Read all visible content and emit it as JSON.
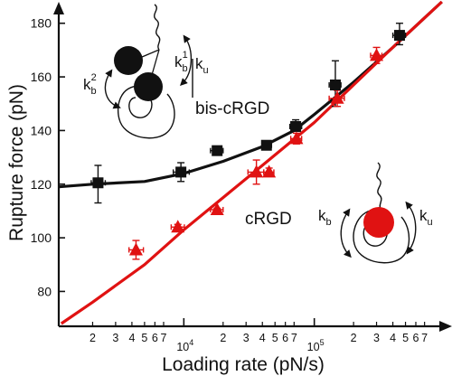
{
  "chart_data": {
    "type": "scatter",
    "xlabel": "Loading rate (pN/s)",
    "ylabel": "Rupture force (pN)",
    "x_scale": "log",
    "xlim": [
      1100,
      1000000
    ],
    "ylim": [
      67,
      188
    ],
    "y_ticks": [
      80,
      100,
      120,
      140,
      160,
      180
    ],
    "x_decade_labels": [
      {
        "value": 10000,
        "base": "10",
        "exp": "4"
      },
      {
        "value": 100000,
        "base": "10",
        "exp": "5"
      }
    ],
    "x_minor_ticks": [
      {
        "value": 2000,
        "label": "2"
      },
      {
        "value": 3000,
        "label": "3"
      },
      {
        "value": 4000,
        "label": "4"
      },
      {
        "value": 5000,
        "label": "5"
      },
      {
        "value": 6000,
        "label": "6"
      },
      {
        "value": 7000,
        "label": "7"
      },
      {
        "value": 20000,
        "label": "2"
      },
      {
        "value": 30000,
        "label": "3"
      },
      {
        "value": 40000,
        "label": "4"
      },
      {
        "value": 50000,
        "label": "5"
      },
      {
        "value": 60000,
        "label": "6"
      },
      {
        "value": 70000,
        "label": "7"
      },
      {
        "value": 200000,
        "label": "2"
      },
      {
        "value": 300000,
        "label": "3"
      },
      {
        "value": 400000,
        "label": "4"
      },
      {
        "value": 500000,
        "label": "5"
      },
      {
        "value": 600000,
        "label": "6"
      },
      {
        "value": 700000,
        "label": "7"
      }
    ],
    "series": [
      {
        "name": "bis-cRGD",
        "color": "#111111",
        "marker": "square",
        "points": [
          {
            "x": 2200,
            "y": 120.5,
            "xerr": [
              1950,
              2500
            ],
            "yerr": [
              113,
              127
            ]
          },
          {
            "x": 9500,
            "y": 124.5,
            "xerr": [
              8300,
              11000
            ],
            "yerr": [
              121,
              128
            ]
          },
          {
            "x": 18000,
            "y": 132.5,
            "xerr": [
              16000,
              20000
            ],
            "yerr": [
              131,
              134
            ]
          },
          {
            "x": 43000,
            "y": 134.5,
            "xerr": [
              40000,
              47000
            ],
            "yerr": [
              133,
              136
            ]
          },
          {
            "x": 72000,
            "y": 141.5,
            "xerr": [
              65000,
              80000
            ],
            "yerr": [
              140,
              144
            ]
          },
          {
            "x": 145000,
            "y": 157,
            "xerr": [
              130000,
              160000
            ],
            "yerr": [
              149,
              166
            ]
          },
          {
            "x": 450000,
            "y": 175.5,
            "xerr": [
              400000,
              500000
            ],
            "yerr": [
              172,
              180
            ]
          }
        ],
        "fit": [
          [
            1100,
            119
          ],
          [
            2000,
            120
          ],
          [
            5000,
            121
          ],
          [
            10000,
            124
          ],
          [
            20000,
            128.5
          ],
          [
            40000,
            134
          ],
          [
            70000,
            140
          ],
          [
            100000,
            146
          ],
          [
            200000,
            158
          ],
          [
            400000,
            171
          ],
          [
            700000,
            182
          ],
          [
            950000,
            188
          ]
        ]
      },
      {
        "name": "cRGD",
        "color": "#e01212",
        "marker": "triangle",
        "points": [
          {
            "x": 4300,
            "y": 95.5,
            "xerr": [
              3800,
              4900
            ],
            "yerr": [
              92,
              99
            ]
          },
          {
            "x": 9000,
            "y": 104,
            "xerr": [
              8000,
              10100
            ],
            "yerr": [
              103,
              105
            ]
          },
          {
            "x": 18000,
            "y": 110.5,
            "xerr": [
              16000,
              20000
            ],
            "yerr": [
              110,
              111
            ]
          },
          {
            "x": 36000,
            "y": 124.5,
            "xerr": [
              31000,
              41000
            ],
            "yerr": [
              120,
              129
            ]
          },
          {
            "x": 45000,
            "y": 124.5,
            "xerr": [
              41000,
              49000
            ],
            "yerr": [
              123,
              126
            ]
          },
          {
            "x": 73000,
            "y": 137,
            "xerr": [
              66000,
              80000
            ],
            "yerr": [
              135,
              139
            ]
          },
          {
            "x": 150000,
            "y": 152,
            "xerr": [
              130000,
              170000
            ],
            "yerr": [
              149,
              155
            ]
          },
          {
            "x": 300000,
            "y": 168,
            "xerr": [
              270000,
              330000
            ],
            "yerr": [
              165,
              171
            ]
          }
        ],
        "fit": [
          [
            1150,
            68
          ],
          [
            2000,
            76
          ],
          [
            5000,
            90
          ],
          [
            10000,
            103
          ],
          [
            20000,
            115
          ],
          [
            40000,
            127
          ],
          [
            100000,
            143
          ],
          [
            200000,
            157
          ],
          [
            400000,
            171
          ],
          [
            700000,
            182
          ],
          [
            950000,
            188
          ]
        ]
      }
    ],
    "annotations": {
      "bis_label": "bis-cRGD",
      "crgd_label": "cRGD",
      "k_b2_base": "k",
      "k_b2_sub": "b",
      "k_b2_sup": "2",
      "k_b1_base": "k",
      "k_b1_sub": "b",
      "k_b1_sup": "1",
      "k_u_top_base": "k",
      "k_u_top_sub": "u",
      "k_b_base": "k",
      "k_b_sub": "b",
      "k_u_base": "k",
      "k_u_sub": "u"
    }
  }
}
